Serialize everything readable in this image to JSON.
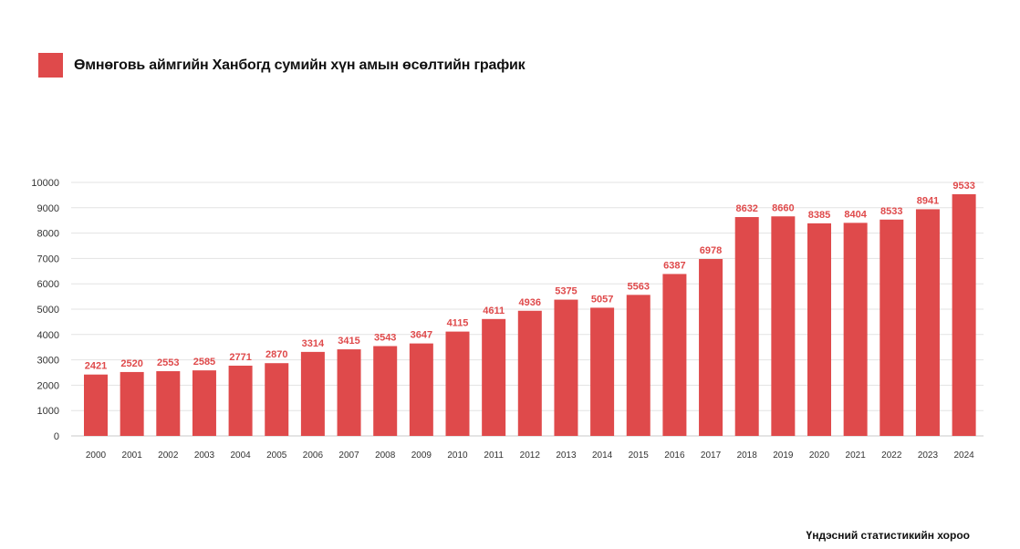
{
  "chart_data": {
    "type": "bar",
    "title": "Өмнөговь аймгийн Ханбогд сумийн хүн амын өсөлтийн график",
    "source": "Үндэсний статистикийн хороо",
    "categories": [
      "2000",
      "2001",
      "2002",
      "2003",
      "2004",
      "2005",
      "2006",
      "2007",
      "2008",
      "2009",
      "2010",
      "2011",
      "2012",
      "2013",
      "2014",
      "2015",
      "2016",
      "2017",
      "2018",
      "2019",
      "2020",
      "2021",
      "2022",
      "2023",
      "2024"
    ],
    "series": [
      {
        "values": [
          2421,
          2520,
          2553,
          2585,
          2771,
          2870,
          3314,
          3415,
          3543,
          3647,
          4115,
          4611,
          4936,
          5375,
          5057,
          5563,
          6387,
          6978,
          8632,
          8660,
          8385,
          8404,
          8533,
          8941,
          9533
        ],
        "color": "#df4a4b"
      }
    ],
    "ylim": [
      0,
      10000
    ],
    "yticks": [
      0,
      1000,
      2000,
      3000,
      4000,
      5000,
      6000,
      7000,
      8000,
      9000,
      10000
    ],
    "grid": true,
    "legend": "top-left",
    "data_labels": true
  }
}
